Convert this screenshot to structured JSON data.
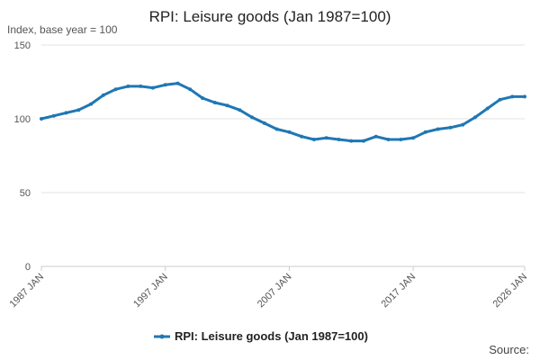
{
  "chart_data": {
    "type": "line",
    "title": "RPI: Leisure goods (Jan 1987=100)",
    "ylabel": "Index, base year = 100",
    "xlabel": "",
    "ylim": [
      0,
      150
    ],
    "yticks": [
      0,
      50,
      100,
      150
    ],
    "xlim": [
      "1987-01",
      "2026-01"
    ],
    "xticks": [
      "1987 JAN",
      "1997 JAN",
      "2007 JAN",
      "2017 JAN",
      "2026 JAN"
    ],
    "legend_position": "bottom",
    "grid": true,
    "series": [
      {
        "name": "RPI: Leisure goods (Jan 1987=100)",
        "color": "#1f77b4",
        "points": [
          [
            "1987-01",
            100
          ],
          [
            "1988-01",
            102
          ],
          [
            "1989-01",
            104
          ],
          [
            "1990-01",
            106
          ],
          [
            "1991-01",
            110
          ],
          [
            "1992-01",
            116
          ],
          [
            "1993-01",
            120
          ],
          [
            "1994-01",
            122
          ],
          [
            "1995-01",
            122
          ],
          [
            "1996-01",
            121
          ],
          [
            "1997-01",
            123
          ],
          [
            "1998-01",
            124
          ],
          [
            "1999-01",
            120
          ],
          [
            "2000-01",
            114
          ],
          [
            "2001-01",
            111
          ],
          [
            "2002-01",
            109
          ],
          [
            "2003-01",
            106
          ],
          [
            "2004-01",
            101
          ],
          [
            "2005-01",
            97
          ],
          [
            "2006-01",
            93
          ],
          [
            "2007-01",
            91
          ],
          [
            "2008-01",
            88
          ],
          [
            "2009-01",
            86
          ],
          [
            "2010-01",
            87
          ],
          [
            "2011-01",
            86
          ],
          [
            "2012-01",
            85
          ],
          [
            "2013-01",
            85
          ],
          [
            "2014-01",
            88
          ],
          [
            "2015-01",
            86
          ],
          [
            "2016-01",
            86
          ],
          [
            "2017-01",
            87
          ],
          [
            "2018-01",
            91
          ],
          [
            "2019-01",
            93
          ],
          [
            "2020-01",
            94
          ],
          [
            "2021-01",
            96
          ],
          [
            "2022-01",
            101
          ],
          [
            "2023-01",
            107
          ],
          [
            "2024-01",
            113
          ],
          [
            "2025-01",
            115
          ],
          [
            "2026-01",
            115
          ]
        ]
      }
    ]
  },
  "legend": {
    "label": "RPI: Leisure goods (Jan 1987=100)"
  },
  "source": {
    "label": "Source:"
  }
}
